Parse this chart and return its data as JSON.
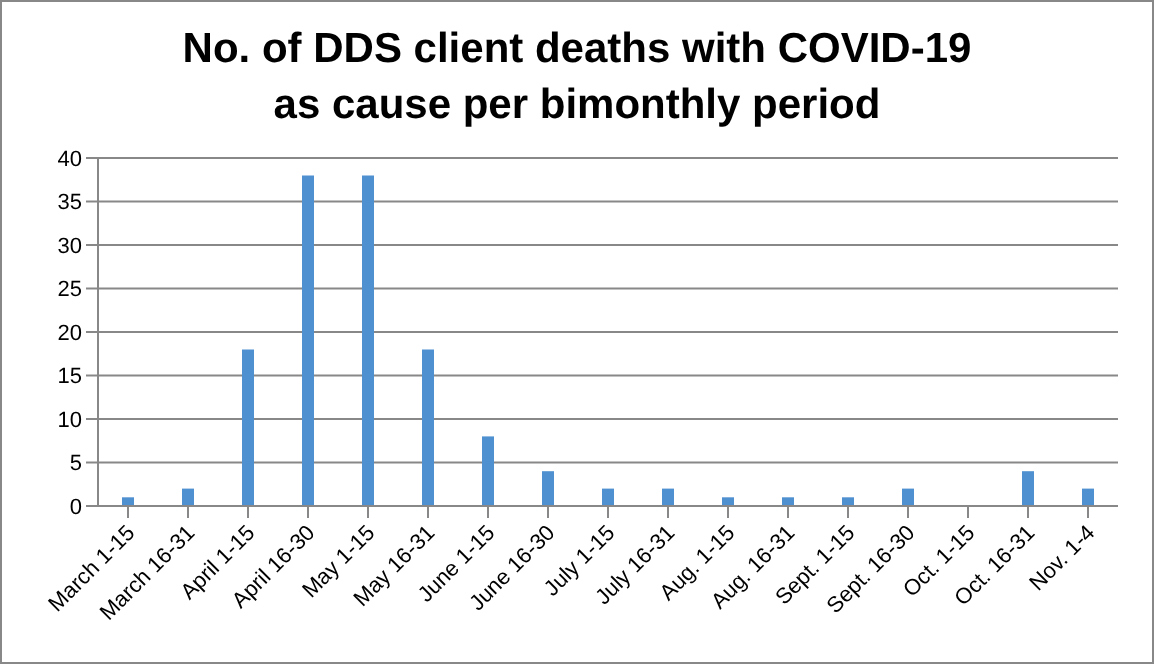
{
  "chart_data": {
    "type": "bar",
    "title": "No. of DDS client deaths with COVID-19 as cause per bimonthly period",
    "categories": [
      "March 1-15",
      "March 16-31",
      "April 1-15",
      "April 16-30",
      "May 1-15",
      "May 16-31",
      "June 1-15",
      "June 16-30",
      "July 1-15",
      "July 16-31",
      "Aug. 1-15",
      "Aug. 16-31",
      "Sept. 1-15",
      "Sept. 16-30",
      "Oct. 1-15",
      "Oct. 16-31",
      "Nov. 1-4"
    ],
    "values": [
      1,
      2,
      18,
      38,
      38,
      18,
      8,
      4,
      2,
      2,
      1,
      1,
      1,
      2,
      0,
      4,
      2
    ],
    "color": "#4f90d0",
    "ylim": [
      0,
      40
    ],
    "yticks": [
      0,
      5,
      10,
      15,
      20,
      25,
      30,
      35,
      40
    ],
    "grid": "y"
  }
}
